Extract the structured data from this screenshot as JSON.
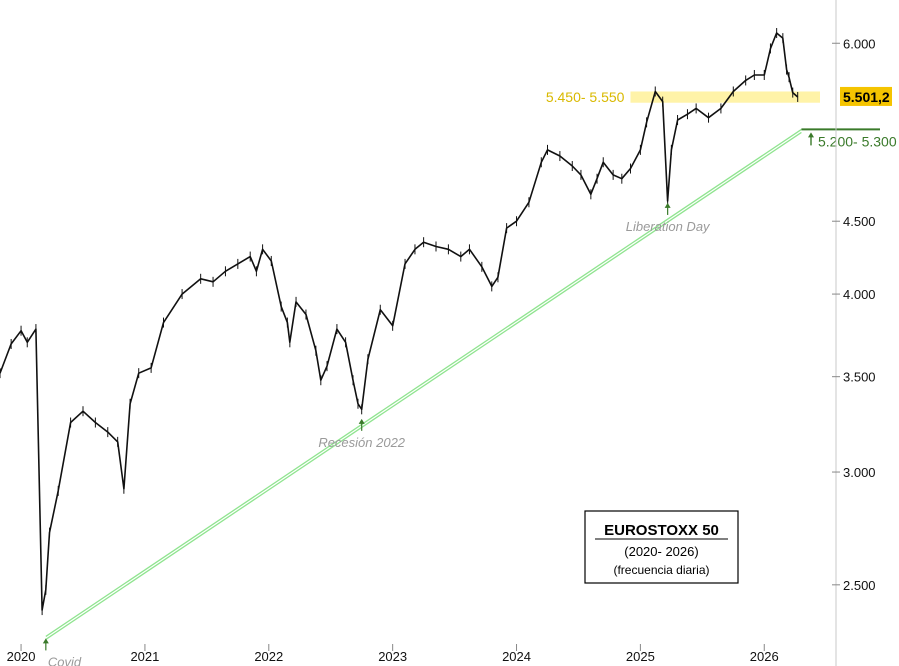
{
  "chart_data": {
    "type": "line",
    "title": "EUROSTOXX 50",
    "subtitle": "(2020- 2026)",
    "frequency_note": "(frecuencia diaria)",
    "y_scale": "log",
    "ylim": [
      2250,
      6250
    ],
    "xlim": [
      2019.83,
      2026.45
    ],
    "y_ticks": [
      {
        "value": 2500,
        "label": "2.500"
      },
      {
        "value": 3000,
        "label": "3.000"
      },
      {
        "value": 3500,
        "label": "3.500"
      },
      {
        "value": 4000,
        "label": "4.000"
      },
      {
        "value": 4500,
        "label": "4.500"
      },
      {
        "value": 6000,
        "label": "6.000"
      }
    ],
    "x_ticks": [
      {
        "value": 2020.0,
        "label": "2020"
      },
      {
        "value": 2021.0,
        "label": "2021"
      },
      {
        "value": 2022.0,
        "label": "2022"
      },
      {
        "value": 2023.0,
        "label": "2023"
      },
      {
        "value": 2024.0,
        "label": "2024"
      },
      {
        "value": 2025.0,
        "label": "2025"
      },
      {
        "value": 2026.0,
        "label": "2026"
      }
    ],
    "grid": false,
    "series": [
      {
        "color": "#111111",
        "x": [
          2019.83,
          2019.92,
          2020.0,
          2020.05,
          2020.12,
          2020.17,
          2020.2,
          2020.23,
          2020.3,
          2020.4,
          2020.5,
          2020.6,
          2020.7,
          2020.78,
          2020.83,
          2020.88,
          2020.95,
          2021.05,
          2021.15,
          2021.3,
          2021.45,
          2021.55,
          2021.65,
          2021.75,
          2021.85,
          2021.9,
          2021.95,
          2022.02,
          2022.1,
          2022.15,
          2022.17,
          2022.22,
          2022.3,
          2022.38,
          2022.42,
          2022.47,
          2022.55,
          2022.62,
          2022.68,
          2022.72,
          2022.75,
          2022.8,
          2022.9,
          2023.0,
          2023.1,
          2023.18,
          2023.25,
          2023.35,
          2023.45,
          2023.55,
          2023.62,
          2023.72,
          2023.8,
          2023.85,
          2023.92,
          2024.0,
          2024.1,
          2024.2,
          2024.25,
          2024.35,
          2024.45,
          2024.52,
          2024.6,
          2024.65,
          2024.7,
          2024.78,
          2024.85,
          2024.92,
          2025.0,
          2025.05,
          2025.12,
          2025.18,
          2025.22,
          2025.25,
          2025.3,
          2025.38,
          2025.45,
          2025.55,
          2025.65,
          2025.75,
          2025.85,
          2025.92,
          2026.0,
          2026.05,
          2026.1,
          2026.15,
          2026.18,
          2026.2,
          2026.23,
          2026.27
        ],
        "y": [
          3520,
          3690,
          3770,
          3700,
          3780,
          2400,
          2480,
          2720,
          2910,
          3250,
          3310,
          3250,
          3200,
          3150,
          2920,
          3350,
          3520,
          3550,
          3820,
          4000,
          4100,
          4080,
          4150,
          4200,
          4250,
          4150,
          4300,
          4220,
          3920,
          3820,
          3700,
          3950,
          3870,
          3650,
          3480,
          3560,
          3780,
          3700,
          3480,
          3350,
          3320,
          3600,
          3900,
          3800,
          4200,
          4300,
          4350,
          4320,
          4300,
          4250,
          4300,
          4180,
          4050,
          4110,
          4450,
          4500,
          4640,
          4950,
          5050,
          5000,
          4920,
          4850,
          4700,
          4820,
          4950,
          4850,
          4820,
          4900,
          5050,
          5280,
          5550,
          5460,
          4650,
          5050,
          5300,
          5350,
          5400,
          5320,
          5400,
          5550,
          5650,
          5700,
          5700,
          5950,
          6100,
          6050,
          5750,
          5680,
          5540,
          5501
        ]
      }
    ],
    "trendline": {
      "color": "#8fe48f",
      "x": [
        2020.2,
        2026.3
      ],
      "y": [
        2300,
        5220
      ]
    },
    "last_value": {
      "label": "5.501,2",
      "value": 5501.2
    },
    "resistance_band": {
      "label": "5.450- 5.550",
      "y0": 5450,
      "y1": 5550,
      "x0": 2024.92,
      "x1": 2026.45
    },
    "support_zone": {
      "label": "5.200- 5.300",
      "x0": 2026.3,
      "x1": 2026.7
    },
    "annotations": [
      {
        "label": "Covid",
        "x": 2020.2,
        "y": 2300
      },
      {
        "label": "Recesión 2022",
        "x": 2022.75,
        "y": 3280
      },
      {
        "label": "Liberation Day",
        "x": 2025.22,
        "y": 4650
      }
    ]
  }
}
